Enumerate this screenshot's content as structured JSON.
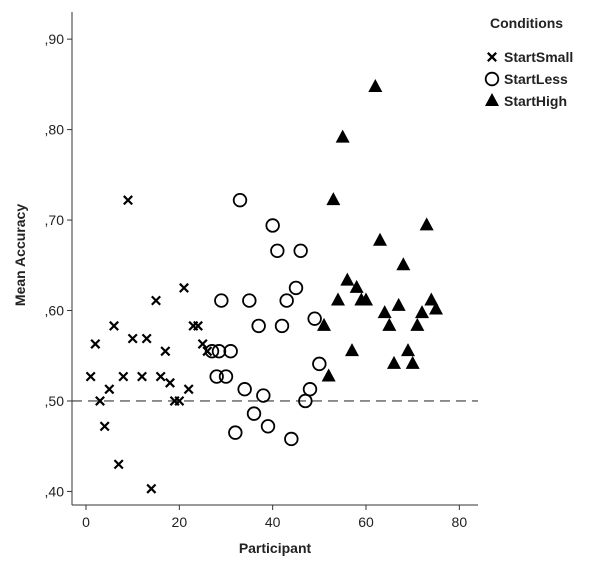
{
  "chart_data": {
    "type": "scatter",
    "xlabel": "Participant",
    "ylabel": "Mean Accuracy",
    "xlim": [
      -3,
      84
    ],
    "ylim": [
      0.385,
      0.93
    ],
    "xticks": [
      0,
      20,
      40,
      60,
      80
    ],
    "xtick_labels": [
      "0",
      "20",
      "40",
      "60",
      "80"
    ],
    "yticks": [
      0.4,
      0.5,
      0.6,
      0.7,
      0.8,
      0.9
    ],
    "ytick_labels": [
      ",40",
      ",50",
      ",60",
      ",70",
      ",80",
      ",90"
    ],
    "grid": false,
    "reference_line": {
      "y": 0.5,
      "style": "dashed"
    },
    "legend": {
      "title": "Conditions",
      "placement": "top-right",
      "entries": [
        "StartSmall",
        "StartLess",
        "StartHigh"
      ]
    },
    "series": [
      {
        "name": "StartSmall",
        "marker": "x",
        "points": [
          [
            1,
            0.527
          ],
          [
            2,
            0.563
          ],
          [
            3,
            0.5
          ],
          [
            4,
            0.472
          ],
          [
            5,
            0.513
          ],
          [
            6,
            0.583
          ],
          [
            7,
            0.43
          ],
          [
            8,
            0.527
          ],
          [
            9,
            0.722
          ],
          [
            10,
            0.569
          ],
          [
            12,
            0.527
          ],
          [
            13,
            0.569
          ],
          [
            14,
            0.403
          ],
          [
            15,
            0.611
          ],
          [
            16,
            0.527
          ],
          [
            17,
            0.555
          ],
          [
            18,
            0.52
          ],
          [
            19,
            0.5
          ],
          [
            20,
            0.5
          ],
          [
            21,
            0.625
          ],
          [
            22,
            0.513
          ],
          [
            23,
            0.583
          ],
          [
            24,
            0.583
          ],
          [
            25,
            0.563
          ],
          [
            26,
            0.555
          ]
        ]
      },
      {
        "name": "StartLess",
        "marker": "circle",
        "points": [
          [
            27,
            0.555
          ],
          [
            28,
            0.527
          ],
          [
            28.5,
            0.555
          ],
          [
            29,
            0.611
          ],
          [
            30,
            0.527
          ],
          [
            31,
            0.555
          ],
          [
            32,
            0.465
          ],
          [
            33,
            0.722
          ],
          [
            34,
            0.513
          ],
          [
            35,
            0.611
          ],
          [
            36,
            0.486
          ],
          [
            37,
            0.583
          ],
          [
            38,
            0.506
          ],
          [
            39,
            0.472
          ],
          [
            40,
            0.694
          ],
          [
            41,
            0.666
          ],
          [
            42,
            0.583
          ],
          [
            43,
            0.611
          ],
          [
            44,
            0.458
          ],
          [
            45,
            0.625
          ],
          [
            46,
            0.666
          ],
          [
            47,
            0.5
          ],
          [
            48,
            0.513
          ],
          [
            49,
            0.591
          ],
          [
            50,
            0.541
          ]
        ]
      },
      {
        "name": "StartHigh",
        "marker": "triangle",
        "points": [
          [
            51,
            0.583
          ],
          [
            52,
            0.527
          ],
          [
            53,
            0.722
          ],
          [
            54,
            0.611
          ],
          [
            55,
            0.791
          ],
          [
            56,
            0.633
          ],
          [
            57,
            0.555
          ],
          [
            58,
            0.625
          ],
          [
            59,
            0.611
          ],
          [
            60,
            0.611
          ],
          [
            62,
            0.847
          ],
          [
            63,
            0.677
          ],
          [
            64,
            0.597
          ],
          [
            65,
            0.583
          ],
          [
            66,
            0.541
          ],
          [
            67,
            0.605
          ],
          [
            68,
            0.65
          ],
          [
            69,
            0.555
          ],
          [
            70,
            0.541
          ],
          [
            71,
            0.583
          ],
          [
            72,
            0.597
          ],
          [
            73,
            0.694
          ],
          [
            74,
            0.611
          ],
          [
            75,
            0.601
          ]
        ]
      }
    ]
  }
}
